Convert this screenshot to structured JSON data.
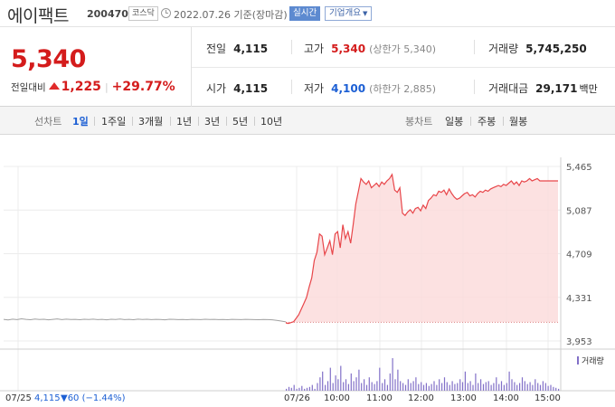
{
  "header": {
    "stock_name": "에이팩트",
    "stock_code": "200470",
    "market": "코스닥",
    "date_text": "2022.07.26 기준(장마감)",
    "realtime_label": "실시간",
    "company_label": "기업개요"
  },
  "quote": {
    "price": "5,340",
    "change_label": "전일대비",
    "change_value": "1,225",
    "change_percent": "+29.77%",
    "direction": "up"
  },
  "stats": {
    "prev_close_label": "전일",
    "prev_close": "4,115",
    "high_label": "고가",
    "high": "5,340",
    "high_sub": "(상한가 5,340)",
    "volume_label": "거래량",
    "volume": "5,745,250",
    "open_label": "시가",
    "open": "4,115",
    "low_label": "저가",
    "low": "4,100",
    "low_sub": "(하한가 2,885)",
    "amount_label": "거래대금",
    "amount": "29,171",
    "amount_unit": "백만"
  },
  "period_bar": {
    "line_chart_label": "선차트",
    "tabs": [
      "1일",
      "1주일",
      "3개월",
      "1년",
      "3년",
      "5년",
      "10년"
    ],
    "active_tab": "1일",
    "candle_label": "봉차트",
    "candle_tabs": [
      "일봉",
      "주봉",
      "월봉"
    ]
  },
  "chart_data": {
    "type": "line",
    "y_ticks": [
      "5,465",
      "5,087",
      "4,709",
      "4,331",
      "3,953"
    ],
    "ylim": [
      3953,
      5465
    ],
    "x_ticks": [
      "07/25",
      "07/26",
      "10:00",
      "11:00",
      "12:00",
      "13:00",
      "14:00",
      "15:00"
    ],
    "prev_day_label": "07/25",
    "prev_day_info": "4,115",
    "prev_day_change": "▼60 (−1.44%)",
    "volume_legend": "거래량",
    "prev_close": 4115,
    "colors": {
      "up_line": "#e8464a",
      "up_fill": "#fbdcdc",
      "prev_line": "#a0a0a0",
      "volume_bar": "#8270c8"
    },
    "prev_day_series": [
      4140,
      4135,
      4142,
      4138,
      4145,
      4140,
      4137,
      4143,
      4139,
      4141,
      4136,
      4140,
      4144,
      4138,
      4142,
      4139,
      4140,
      4137,
      4141,
      4139,
      4142,
      4138,
      4140,
      4136,
      4141,
      4139,
      4143,
      4138,
      4140,
      4137,
      4142,
      4139,
      4141,
      4138,
      4140,
      4139,
      4136,
      4141,
      4140,
      4138,
      4139,
      4137,
      4140,
      4139,
      4138,
      4141,
      4139,
      4140,
      4138,
      4139,
      4137,
      4140,
      4139,
      4138,
      4140,
      4139,
      4138,
      4137,
      4139,
      4138,
      4136,
      4132,
      4125,
      4118
    ],
    "today_series": [
      4110,
      4105,
      4112,
      4120,
      4150,
      4180,
      4230,
      4280,
      4330,
      4420,
      4500,
      4650,
      4720,
      4880,
      4860,
      4700,
      4760,
      4820,
      4700,
      4880,
      4900,
      4760,
      4960,
      4840,
      4900,
      4800,
      4960,
      5140,
      5250,
      5360,
      5330,
      5310,
      5340,
      5280,
      5300,
      5320,
      5290,
      5330,
      5310,
      5340,
      5360,
      5395,
      5260,
      5240,
      5280,
      5060,
      5040,
      5070,
      5090,
      5060,
      5100,
      5110,
      5080,
      5130,
      5100,
      5170,
      5190,
      5220,
      5210,
      5250,
      5240,
      5260,
      5220,
      5270,
      5230,
      5200,
      5180,
      5190,
      5210,
      5230,
      5240,
      5210,
      5220,
      5200,
      5230,
      5250,
      5240,
      5260,
      5250,
      5270,
      5280,
      5290,
      5300,
      5290,
      5310,
      5300,
      5320,
      5340,
      5310,
      5330,
      5300,
      5340,
      5330,
      5340,
      5360,
      5340,
      5350,
      5360,
      5340,
      5340,
      5340,
      5340,
      5340,
      5340,
      5340,
      5340
    ],
    "volume_series": [
      2,
      4,
      3,
      6,
      2,
      3,
      5,
      2,
      3,
      4,
      6,
      2,
      8,
      14,
      20,
      6,
      10,
      24,
      8,
      16,
      12,
      26,
      9,
      12,
      7,
      18,
      10,
      14,
      22,
      8,
      12,
      6,
      14,
      9,
      7,
      10,
      24,
      8,
      12,
      6,
      18,
      34,
      12,
      22,
      10,
      8,
      6,
      12,
      8,
      10,
      14,
      7,
      9,
      6,
      8,
      5,
      7,
      10,
      6,
      12,
      8,
      14,
      9,
      6,
      10,
      7,
      8,
      12,
      9,
      20,
      8,
      10,
      6,
      18,
      8,
      12,
      7,
      9,
      10,
      6,
      8,
      14,
      7,
      10,
      6,
      8,
      20,
      12,
      9,
      6,
      8,
      14,
      10,
      7,
      9,
      6,
      12,
      8,
      6,
      10,
      8,
      5,
      6,
      4,
      3,
      2
    ]
  }
}
